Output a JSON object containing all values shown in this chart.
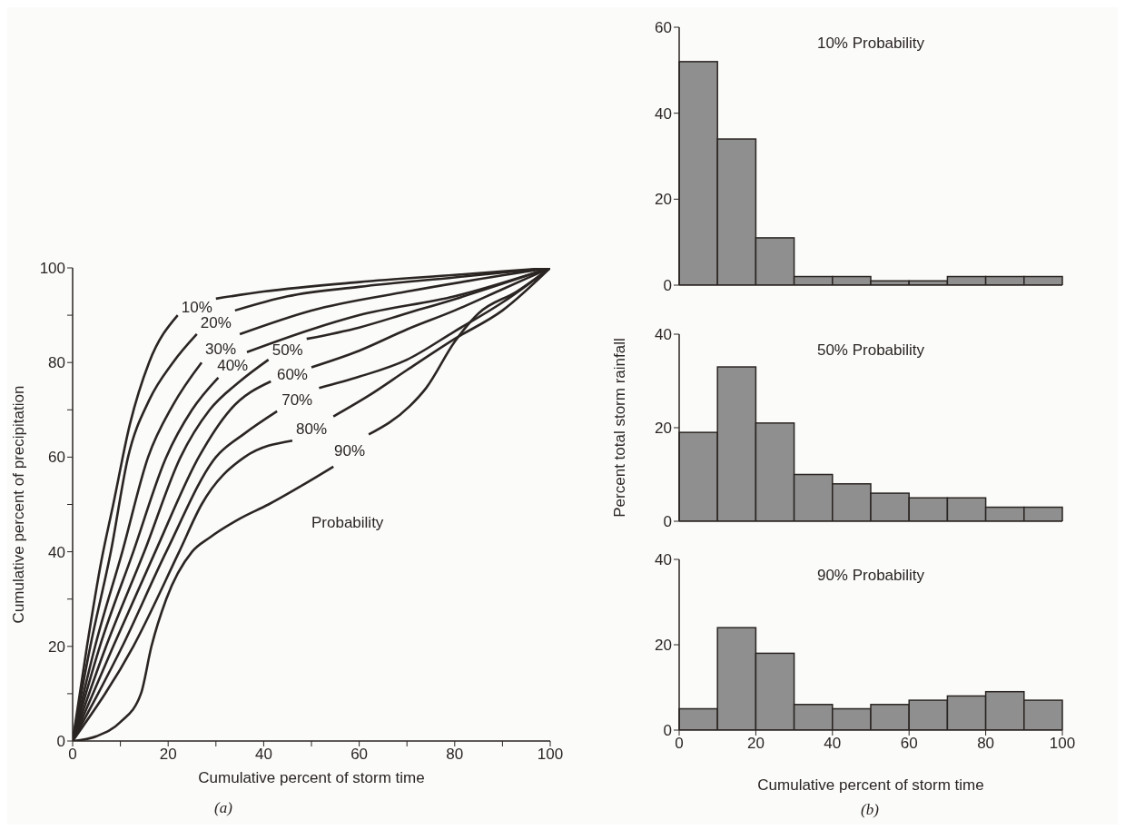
{
  "chart_data": [
    {
      "type": "line",
      "xlabel": "Cumulative percent of storm time",
      "ylabel": "Cumulative percent of precipitation",
      "xlim": [
        0,
        100
      ],
      "ylim": [
        0,
        100
      ],
      "xticks": [
        0,
        {
          "value": 10,
          "label": null
        },
        20,
        {
          "value": 30,
          "label": null
        },
        40,
        {
          "value": 50,
          "label": null
        },
        60,
        {
          "value": 70,
          "label": null
        },
        80,
        {
          "value": 90,
          "label": null
        },
        100
      ],
      "yticks": [
        0,
        {
          "value": 10,
          "label": null
        },
        20,
        {
          "value": 30,
          "label": null
        },
        40,
        {
          "value": 50,
          "label": null
        },
        60,
        {
          "value": 70,
          "label": null
        },
        80,
        {
          "value": 90,
          "label": null
        },
        100
      ],
      "annotations": [
        "Probability",
        "(a)"
      ],
      "series": [
        {
          "name": "10%",
          "color": "#2a2522",
          "x": [
            0,
            3,
            6,
            8.5,
            12,
            16,
            22,
            26,
            30,
            40,
            60,
            80,
            100
          ],
          "values": [
            0,
            20,
            38,
            50,
            67,
            80,
            90,
            null,
            93.5,
            95,
            97,
            98.5,
            100
          ]
        },
        {
          "name": "20%",
          "color": "#2a2522",
          "x": [
            0,
            3.7,
            8,
            11.6,
            16,
            21,
            26,
            30,
            34,
            45,
            60,
            80,
            100
          ],
          "values": [
            0,
            20,
            40,
            60,
            72,
            80,
            86,
            null,
            91,
            94,
            96,
            98,
            100
          ]
        },
        {
          "name": "30%",
          "color": "#2a2522",
          "x": [
            0,
            4.7,
            10.4,
            15.8,
            21,
            27,
            31,
            35,
            50,
            70,
            100
          ],
          "values": [
            0,
            20,
            40,
            60,
            71,
            80,
            null,
            86,
            91,
            95,
            100
          ]
        },
        {
          "name": "40%",
          "color": "#2a2522",
          "x": [
            0,
            5.7,
            12.7,
            19.6,
            25,
            30.5,
            33.5,
            36.5,
            50,
            60,
            80,
            100
          ],
          "values": [
            0,
            20,
            40,
            60,
            70,
            76.8,
            null,
            82.2,
            87,
            90,
            94,
            100
          ]
        },
        {
          "name": "50%",
          "color": "#2a2522",
          "x": [
            0,
            7,
            15,
            22.6,
            28.7,
            35,
            41,
            45,
            49,
            60,
            70,
            80,
            100
          ],
          "values": [
            0,
            20,
            40,
            60,
            70,
            76,
            80.6,
            null,
            85,
            87.4,
            90.4,
            93.4,
            100
          ]
        },
        {
          "name": "60%",
          "color": "#2a2522",
          "x": [
            0,
            8.5,
            17.3,
            26.4,
            33,
            41.5,
            46,
            50,
            60,
            70,
            80,
            90,
            100
          ],
          "values": [
            0,
            20,
            40,
            60,
            70,
            76,
            null,
            79,
            82.5,
            87,
            91,
            95.5,
            100
          ]
        },
        {
          "name": "70%",
          "color": "#2a2522",
          "x": [
            0,
            10.4,
            19.6,
            30,
            36,
            42.8,
            47,
            51.6,
            60,
            70,
            80,
            90,
            100
          ],
          "values": [
            0,
            20,
            40,
            60,
            65,
            69.7,
            null,
            74.6,
            77,
            80.6,
            86.6,
            92.7,
            100
          ]
        },
        {
          "name": "80%",
          "color": "#2a2522",
          "x": [
            0,
            12.7,
            22.3,
            27,
            36,
            46,
            50,
            54.6,
            62,
            70,
            80,
            90,
            100
          ],
          "values": [
            0,
            20,
            40,
            50,
            60,
            63.5,
            null,
            68.6,
            73,
            78.4,
            85,
            91,
            100
          ]
        },
        {
          "name": "90%",
          "color": "#2a2522",
          "x": [
            0,
            5,
            10,
            14.3,
            16.5,
            19.6,
            25,
            28.7,
            35,
            41,
            48,
            54.6,
            58,
            62,
            70.6,
            74,
            80,
            85,
            93,
            100
          ],
          "values": [
            0,
            1,
            4,
            10,
            20,
            30,
            40,
            43,
            47,
            50,
            54,
            58,
            null,
            64.8,
            70.8,
            74.6,
            84.4,
            90.4,
            95,
            100
          ]
        }
      ]
    },
    {
      "type": "histogram",
      "title": "10% Probability",
      "bins": [
        0,
        10,
        20,
        30,
        40,
        50,
        60,
        70,
        80,
        90,
        100
      ],
      "values": [
        52,
        34,
        11,
        2,
        2,
        1,
        1,
        2,
        2,
        2
      ],
      "color": "#8f8f8f",
      "xlim": [
        0,
        100
      ],
      "ylim": [
        0,
        60
      ],
      "yticks": [
        0,
        20,
        40,
        60
      ],
      "tick_labels": "y"
    },
    {
      "type": "histogram",
      "title": "50% Probability",
      "ylabel": "Percent total storm rainfall",
      "bins": [
        0,
        10,
        20,
        30,
        40,
        50,
        60,
        70,
        80,
        90,
        100
      ],
      "values": [
        19,
        33,
        21,
        10,
        8,
        6,
        5,
        5,
        3,
        3
      ],
      "color": "#8f8f8f",
      "xlim": [
        0,
        100
      ],
      "ylim": [
        0,
        40
      ],
      "yticks": [
        0,
        20,
        40
      ],
      "tick_labels": "y"
    },
    {
      "type": "histogram",
      "title": "90% Probability",
      "xlabel": "Cumulative percent of storm time",
      "bins": [
        0,
        10,
        20,
        30,
        40,
        50,
        60,
        70,
        80,
        90,
        100
      ],
      "values": [
        5,
        24,
        18,
        6,
        5,
        6,
        7,
        8,
        9,
        7
      ],
      "color": "#8f8f8f",
      "xlim": [
        0,
        100
      ],
      "ylim": [
        0,
        40
      ],
      "xticks": [
        0,
        20,
        40,
        60,
        80,
        100
      ],
      "yticks": [
        0,
        20,
        40
      ],
      "annotations": [
        "(b)"
      ]
    }
  ]
}
